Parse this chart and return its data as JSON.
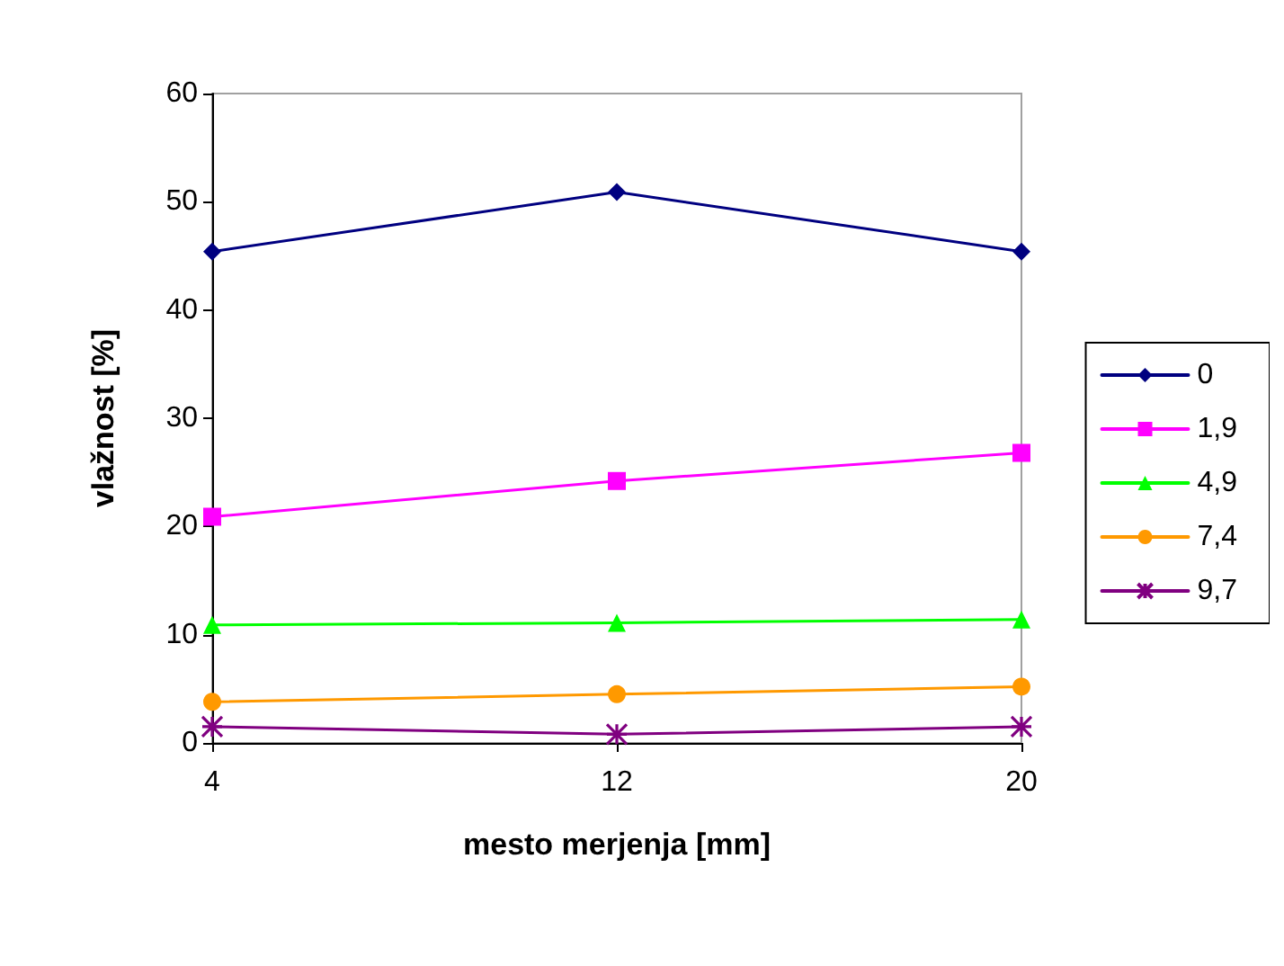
{
  "chart_data": {
    "type": "line",
    "xlabel": "mesto merjenja [mm]",
    "ylabel": "vlažnost [%]",
    "x": [
      4,
      12,
      20
    ],
    "xlim": [
      4,
      20
    ],
    "xticks": [
      4,
      12,
      20
    ],
    "ylim": [
      0,
      60
    ],
    "yticks": [
      0,
      10,
      20,
      30,
      40,
      50,
      60
    ],
    "grid": false,
    "legend": "right",
    "series": [
      {
        "name": "0",
        "color": "#000080",
        "marker": "diamond",
        "values": [
          45.4,
          50.9,
          45.4
        ]
      },
      {
        "name": "1,9",
        "color": "#ff00ff",
        "marker": "square",
        "values": [
          20.9,
          24.2,
          26.8
        ]
      },
      {
        "name": "4,9",
        "color": "#00ff00",
        "marker": "triangle",
        "values": [
          10.9,
          11.1,
          11.4
        ]
      },
      {
        "name": "7,4",
        "color": "#ff9900",
        "marker": "circle",
        "values": [
          3.8,
          4.5,
          5.2
        ]
      },
      {
        "name": "9,7",
        "color": "#800080",
        "marker": "cross",
        "values": [
          1.5,
          0.8,
          1.5
        ]
      }
    ]
  }
}
